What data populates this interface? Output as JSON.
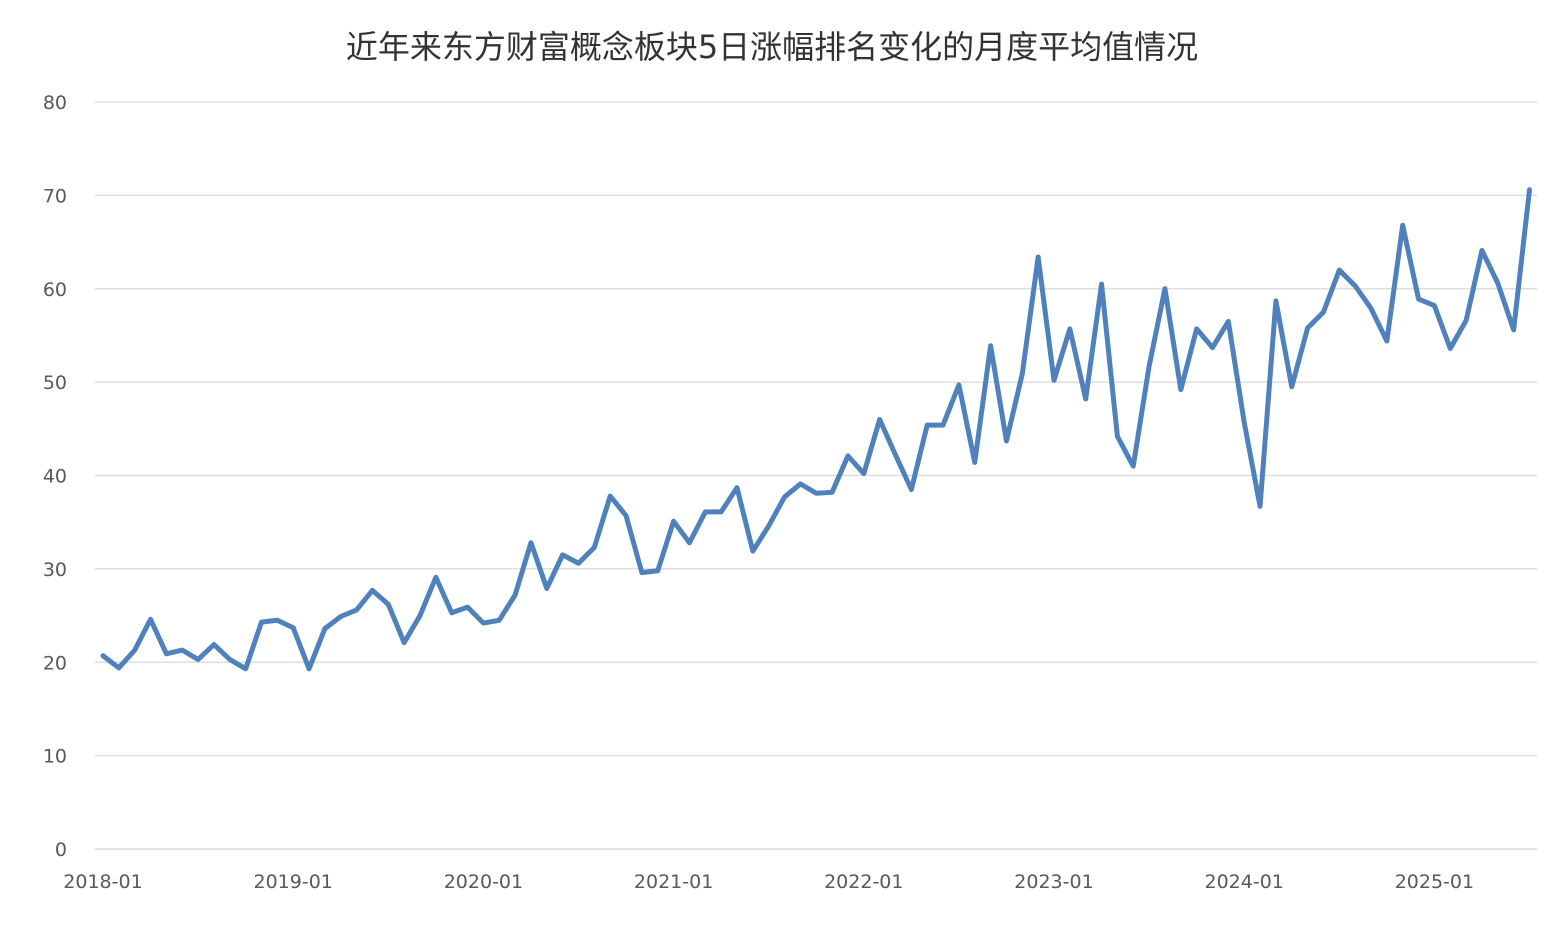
{
  "chart_data": {
    "type": "line",
    "title": "近年来东方财富概念板块5日涨幅排名变化的月度平均值情况",
    "xlabel": "",
    "ylabel": "",
    "ylim": [
      0,
      80
    ],
    "y_ticks": [
      "0",
      "10",
      "20",
      "30",
      "40",
      "50",
      "60",
      "70",
      "80"
    ],
    "x_tick_labels": [
      "2018-01",
      "2019-01",
      "2020-01",
      "2021-01",
      "2022-01",
      "2023-01",
      "2024-01",
      "2025-01"
    ],
    "grid": "horizontal",
    "legend": "none",
    "line_color": "#4F81BD",
    "series": [
      {
        "x": [
          "2018-01",
          "2018-02",
          "2018-03",
          "2018-04",
          "2018-05",
          "2018-06",
          "2018-07",
          "2018-08",
          "2018-09",
          "2018-10",
          "2018-11",
          "2018-12",
          "2019-01",
          "2019-02",
          "2019-03",
          "2019-04",
          "2019-05",
          "2019-06",
          "2019-07",
          "2019-08",
          "2019-09",
          "2019-10",
          "2019-11",
          "2019-12",
          "2020-01",
          "2020-02",
          "2020-03",
          "2020-04",
          "2020-05",
          "2020-06",
          "2020-07",
          "2020-08",
          "2020-09",
          "2020-10",
          "2020-11",
          "2020-12",
          "2021-01",
          "2021-02",
          "2021-03",
          "2021-04",
          "2021-05",
          "2021-06",
          "2021-07",
          "2021-08",
          "2021-09",
          "2021-10",
          "2021-11",
          "2021-12",
          "2022-01",
          "2022-02",
          "2022-03",
          "2022-04",
          "2022-05",
          "2022-06",
          "2022-07",
          "2022-08",
          "2022-09",
          "2022-10",
          "2022-11",
          "2022-12",
          "2023-01",
          "2023-02",
          "2023-03",
          "2023-04",
          "2023-05",
          "2023-06",
          "2023-07",
          "2023-08",
          "2023-09",
          "2023-10",
          "2023-11",
          "2023-12",
          "2024-01",
          "2024-02",
          "2024-03",
          "2024-04",
          "2024-05",
          "2024-06",
          "2024-07",
          "2024-08",
          "2024-09",
          "2024-10",
          "2024-11",
          "2024-12",
          "2025-01",
          "2025-02",
          "2025-03",
          "2025-04",
          "2025-05",
          "2025-06",
          "2025-07"
        ],
        "values": [
          20.7,
          19.4,
          21.3,
          24.6,
          20.9,
          21.3,
          20.3,
          21.9,
          20.3,
          19.3,
          24.3,
          24.5,
          23.7,
          19.3,
          23.6,
          24.9,
          25.6,
          27.7,
          26.2,
          22.1,
          25.0,
          29.1,
          25.3,
          25.9,
          24.2,
          24.5,
          27.2,
          32.8,
          27.9,
          31.5,
          30.6,
          32.3,
          37.8,
          35.7,
          29.6,
          29.8,
          35.1,
          32.8,
          36.1,
          36.1,
          38.7,
          31.9,
          34.6,
          37.7,
          39.1,
          38.1,
          38.2,
          42.1,
          40.2,
          46.0,
          42.2,
          38.5,
          45.4,
          45.4,
          49.7,
          41.4,
          53.9,
          43.7,
          50.9,
          63.4,
          50.2,
          55.7,
          48.2,
          60.5,
          44.2,
          41.0,
          51.7,
          60.0,
          49.2,
          55.7,
          53.7,
          56.5,
          45.7,
          36.7,
          58.7,
          49.5,
          55.8,
          57.5,
          62.0,
          60.3,
          57.9,
          54.4,
          66.8,
          58.9,
          58.2,
          53.6,
          56.6,
          64.1,
          60.6,
          55.6,
          70.6
        ]
      }
    ]
  }
}
